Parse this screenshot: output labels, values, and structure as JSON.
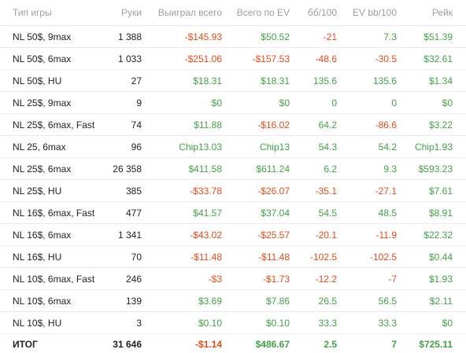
{
  "headers": {
    "game_type": "Тип игры",
    "hands": "Руки",
    "won": "Выиграл всего",
    "ev": "Всего по EV",
    "bb100": "бб/100",
    "ev_bb100": "EV bb/100",
    "rake": "Рейк"
  },
  "rows": [
    {
      "game": "NL 50$, 9max",
      "hands": "1 388",
      "won": "-$145.93",
      "ev": "$50.52",
      "bb100": "-21",
      "ev_bb100": "7.3",
      "rake": "$51.39"
    },
    {
      "game": "NL 50$, 6max",
      "hands": "1 033",
      "won": "-$251.06",
      "ev": "-$157.53",
      "bb100": "-48.6",
      "ev_bb100": "-30.5",
      "rake": "$32.61"
    },
    {
      "game": "NL 50$, HU",
      "hands": "27",
      "won": "$18.31",
      "ev": "$18.31",
      "bb100": "135.6",
      "ev_bb100": "135.6",
      "rake": "$1.34"
    },
    {
      "game": "NL 25$, 9max",
      "hands": "9",
      "won": "$0",
      "ev": "$0",
      "bb100": "0",
      "ev_bb100": "0",
      "rake": "$0"
    },
    {
      "game": "NL 25$, 6max, Fast",
      "hands": "74",
      "won": "$11.88",
      "ev": "-$16.02",
      "bb100": "64.2",
      "ev_bb100": "-86.6",
      "rake": "$3.22"
    },
    {
      "game": "NL 25, 6max",
      "hands": "96",
      "won": "Chip13.03",
      "ev": "Chip13",
      "bb100": "54.3",
      "ev_bb100": "54.2",
      "rake": "Chip1.93"
    },
    {
      "game": "NL 25$, 6max",
      "hands": "26 358",
      "won": "$411.58",
      "ev": "$611.24",
      "bb100": "6.2",
      "ev_bb100": "9.3",
      "rake": "$593.23"
    },
    {
      "game": "NL 25$, HU",
      "hands": "385",
      "won": "-$33.78",
      "ev": "-$26.07",
      "bb100": "-35.1",
      "ev_bb100": "-27.1",
      "rake": "$7.61"
    },
    {
      "game": "NL 16$, 6max, Fast",
      "hands": "477",
      "won": "$41.57",
      "ev": "$37.04",
      "bb100": "54.5",
      "ev_bb100": "48.5",
      "rake": "$8.91"
    },
    {
      "game": "NL 16$, 6max",
      "hands": "1 341",
      "won": "-$43.02",
      "ev": "-$25.57",
      "bb100": "-20.1",
      "ev_bb100": "-11.9",
      "rake": "$22.32"
    },
    {
      "game": "NL 16$, HU",
      "hands": "70",
      "won": "-$11.48",
      "ev": "-$11.48",
      "bb100": "-102.5",
      "ev_bb100": "-102.5",
      "rake": "$0.44"
    },
    {
      "game": "NL 10$, 6max, Fast",
      "hands": "246",
      "won": "-$3",
      "ev": "-$1.73",
      "bb100": "-12.2",
      "ev_bb100": "-7",
      "rake": "$1.93"
    },
    {
      "game": "NL 10$, 6max",
      "hands": "139",
      "won": "$3.69",
      "ev": "$7.86",
      "bb100": "26.5",
      "ev_bb100": "56.5",
      "rake": "$2.11"
    },
    {
      "game": "NL 10$, HU",
      "hands": "3",
      "won": "$0.10",
      "ev": "$0.10",
      "bb100": "33.3",
      "ev_bb100": "33.3",
      "rake": "$0"
    }
  ],
  "total": {
    "game": "ИТОГ",
    "hands": "31 646",
    "won": "-$1.14",
    "ev": "$486.67",
    "bb100": "2.5",
    "ev_bb100": "7",
    "rake": "$725.11"
  },
  "colors": {
    "positive": "#43a047",
    "negative": "#e64a19",
    "header_text": "#9e9e9e",
    "body_text": "#222222"
  }
}
